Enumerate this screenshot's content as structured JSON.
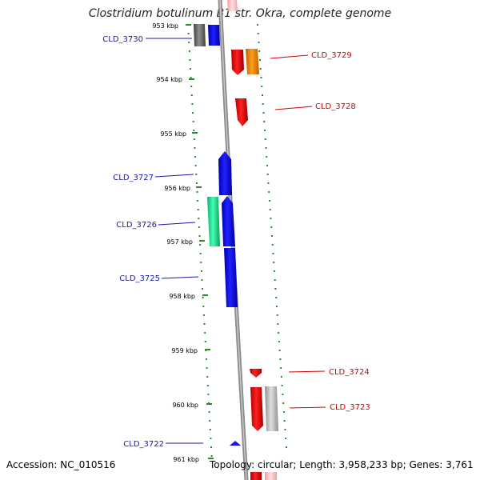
{
  "title": "Clostridium botulinum B1 str. Okra, complete genome",
  "footer": {
    "accession": "Accession: NC_010516",
    "topology": "Topology: circular; Length: 3,958,233 bp; Genes: 3,761"
  },
  "ticks": [
    "953 kbp",
    "954 kbp",
    "955 kbp",
    "956 kbp",
    "957 kbp",
    "958 kbp",
    "959 kbp",
    "960 kbp",
    "961 kbp"
  ],
  "gene_labels": {
    "left": [
      "CLD_3730",
      "CLD_3727",
      "CLD_3726",
      "CLD_3725",
      "CLD_3722"
    ],
    "right": [
      "CLD_3729",
      "CLD_3728",
      "CLD_3724",
      "CLD_3723"
    ]
  },
  "colors": {
    "left_label": "#1a1aa6",
    "right_label": "#d40000",
    "dots": "#2a8a2a",
    "backbone": "#888888",
    "gene_blue": "#1010e0",
    "gene_red": "#e00000",
    "gene_orange": "#f08c00",
    "gene_green": "#20e090",
    "gene_gray": "#a0a0a0",
    "gene_darkgray": "#666666"
  }
}
